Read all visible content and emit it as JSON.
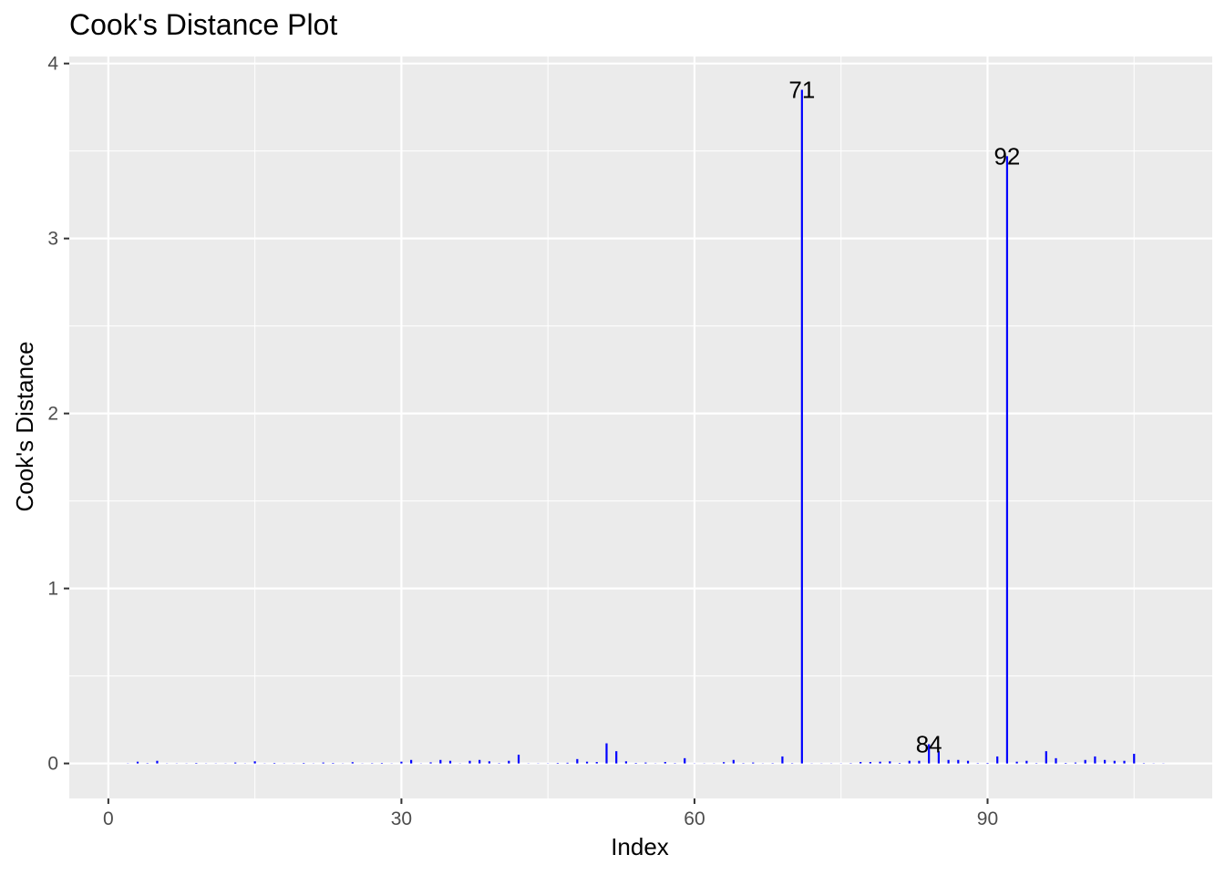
{
  "chart_data": {
    "type": "bar",
    "title": "Cook's Distance Plot",
    "xlabel": "Index",
    "ylabel": "Cook's Distance",
    "xlim": [
      -4,
      113
    ],
    "ylim": [
      -0.2,
      4.04
    ],
    "x_ticks": [
      0,
      30,
      60,
      90
    ],
    "y_ticks": [
      0,
      1,
      2,
      3,
      4
    ],
    "grid": true,
    "bar_color": "#0000ff",
    "panel_background": "#ebebeb",
    "grid_color": "#ffffff",
    "series": [
      {
        "x": [
          1,
          2,
          3,
          4,
          5,
          6,
          7,
          8,
          9,
          10,
          11,
          12,
          13,
          14,
          15,
          16,
          17,
          18,
          19,
          20,
          21,
          22,
          23,
          24,
          25,
          26,
          27,
          28,
          29,
          30,
          31,
          32,
          33,
          34,
          35,
          36,
          37,
          38,
          39,
          40,
          41,
          42,
          43,
          44,
          45,
          46,
          47,
          48,
          49,
          50,
          51,
          52,
          53,
          54,
          55,
          56,
          57,
          58,
          59,
          60,
          61,
          62,
          63,
          64,
          65,
          66,
          67,
          68,
          69,
          70,
          71,
          72,
          73,
          74,
          75,
          76,
          77,
          78,
          79,
          80,
          81,
          82,
          83,
          84,
          85,
          86,
          87,
          88,
          89,
          90,
          91,
          92,
          93,
          94,
          95,
          96,
          97,
          98,
          99,
          100,
          101,
          102,
          103,
          104,
          105,
          106,
          107,
          108
        ],
        "values": [
          0,
          0.001,
          0.01,
          0.002,
          0.015,
          0.001,
          0.001,
          0.001,
          0.003,
          0.001,
          0.001,
          0.001,
          0.005,
          0.001,
          0.012,
          0.001,
          0.003,
          0.001,
          0.001,
          0.003,
          0.001,
          0.005,
          0.003,
          0.001,
          0.007,
          0.001,
          0.002,
          0.003,
          0.001,
          0.01,
          0.02,
          0.001,
          0.006,
          0.02,
          0.015,
          0.001,
          0.015,
          0.02,
          0.012,
          0.002,
          0.015,
          0.05,
          0.001,
          0.001,
          0.001,
          0.003,
          0.004,
          0.025,
          0.01,
          0.008,
          0.115,
          0.07,
          0.012,
          0.003,
          0.005,
          0.001,
          0.008,
          0.002,
          0.03,
          0.001,
          0.001,
          0.001,
          0.007,
          0.02,
          0.002,
          0.005,
          0.001,
          0.002,
          0.04,
          0.002,
          3.85,
          0.001,
          0.001,
          0.001,
          0.001,
          0.002,
          0.008,
          0.008,
          0.01,
          0.012,
          0.003,
          0.015,
          0.015,
          0.11,
          0.07,
          0.02,
          0.02,
          0.015,
          0.002,
          0.003,
          0.04,
          3.47,
          0.01,
          0.015,
          0.002,
          0.07,
          0.03,
          0.003,
          0.005,
          0.02,
          0.04,
          0.02,
          0.015,
          0.015,
          0.055,
          0.002,
          0.001,
          0.001
        ]
      }
    ],
    "labels": [
      {
        "x": 71,
        "y": 3.85,
        "text": "71"
      },
      {
        "x": 84,
        "y": 0.11,
        "text": "84"
      },
      {
        "x": 92,
        "y": 3.47,
        "text": "92"
      }
    ]
  }
}
